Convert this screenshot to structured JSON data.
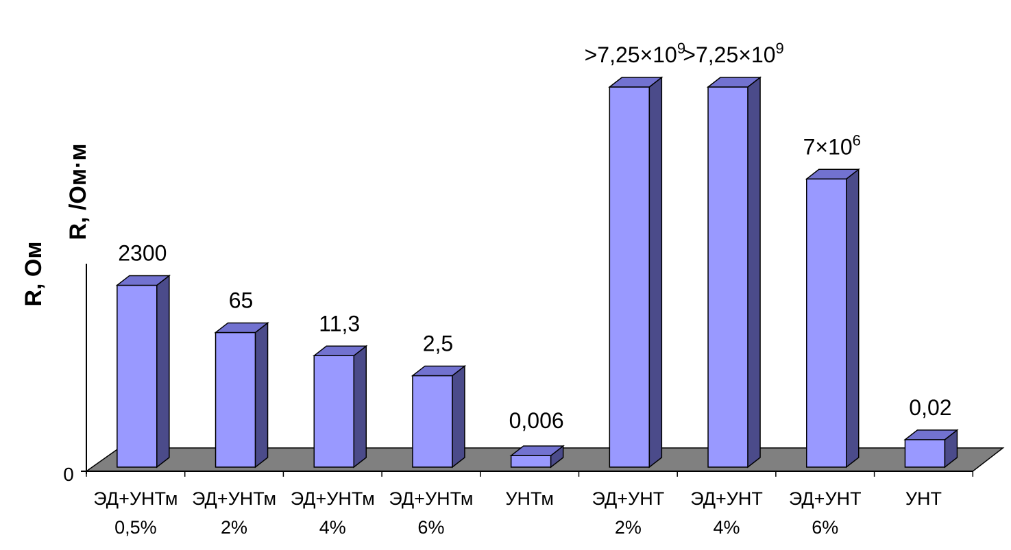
{
  "chart_data": {
    "type": "bar",
    "style": "3d-column",
    "ylabels": [
      "R, Ом",
      "R, /Ом·м"
    ],
    "ytick_labels": [
      "0"
    ],
    "categories": [
      [
        "ЭД+УНТм",
        "0,5%"
      ],
      [
        "ЭД+УНТм",
        "2%"
      ],
      [
        "ЭД+УНТм",
        "4%"
      ],
      [
        "ЭД+УНТм",
        "6%"
      ],
      [
        "УНТм",
        ""
      ],
      [
        "ЭД+УНТ",
        "2%"
      ],
      [
        "ЭД+УНТ",
        "4%"
      ],
      [
        "ЭД+УНТ",
        "6%"
      ],
      [
        "УНТ",
        ""
      ]
    ],
    "data_labels": [
      {
        "base": "2300"
      },
      {
        "base": "65"
      },
      {
        "base": "11,3"
      },
      {
        "base": "2,5"
      },
      {
        "base": "0,006"
      },
      {
        "base": ">7,25×10",
        "sup": "9"
      },
      {
        "base": ">7,25×10",
        "sup": "9"
      },
      {
        "base": "7×10",
        "sup": "6"
      },
      {
        "base": "0,02"
      }
    ],
    "values": [
      2300,
      65,
      11.3,
      2.5,
      0.006,
      7250000000,
      7250000000,
      7000000,
      0.02
    ],
    "colors": {
      "bar_front": "#9999ff",
      "bar_side": "#4b4b8a",
      "bar_top": "#7272d0",
      "floor": "#808080"
    }
  }
}
